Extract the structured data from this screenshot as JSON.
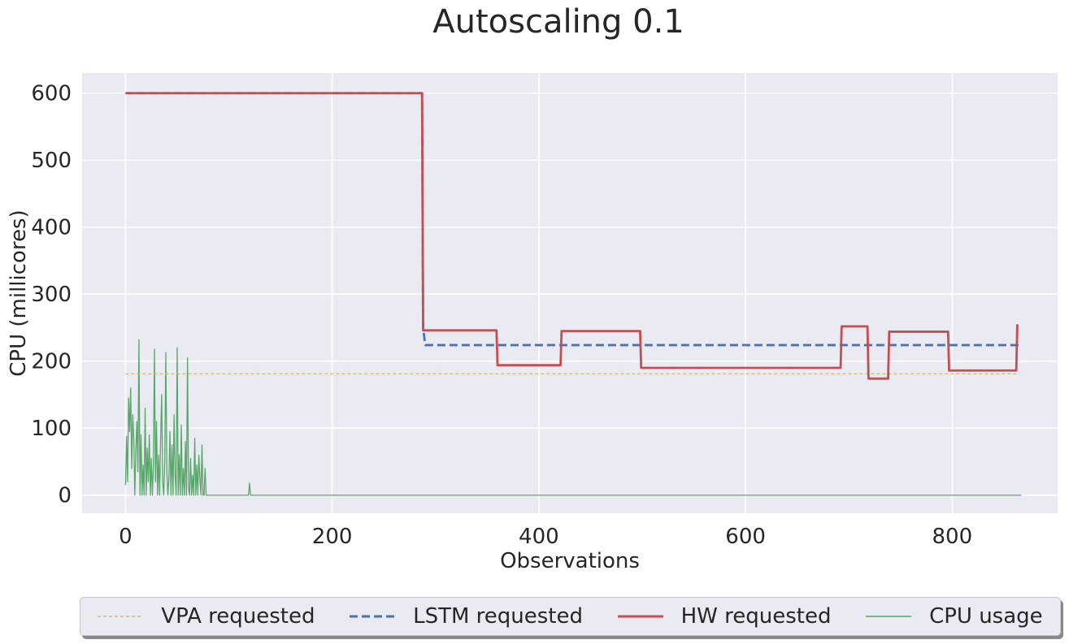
{
  "chart_data": {
    "type": "line",
    "title": "Autoscaling 0.1",
    "xlabel": "Observations",
    "ylabel": "CPU (millicores)",
    "xlim": [
      -42,
      902
    ],
    "ylim": [
      -27,
      630
    ],
    "xticks": [
      0,
      200,
      400,
      600,
      800
    ],
    "yticks": [
      0,
      100,
      200,
      300,
      400,
      500,
      600
    ],
    "grid": true,
    "legend_position": "bottom-center",
    "series": [
      {
        "name": "VPA requested",
        "color": "#ccb974",
        "style": "dotted",
        "x": [
          0,
          865
        ],
        "y": [
          181,
          181
        ]
      },
      {
        "name": "LSTM requested",
        "color": "#4c72b0",
        "style": "dashed",
        "x": [
          0,
          287,
          288,
          290,
          865
        ],
        "y": [
          600,
          600,
          250,
          224,
          224
        ]
      },
      {
        "name": "HW requested",
        "color": "#c44e52",
        "style": "solid",
        "x": [
          0,
          287,
          288,
          359,
          360,
          421,
          422,
          498,
          499,
          692,
          693,
          718,
          719,
          738,
          739,
          796,
          797,
          862,
          863
        ],
        "y": [
          600,
          600,
          246,
          246,
          194,
          194,
          245,
          245,
          190,
          190,
          252,
          252,
          174,
          174,
          244,
          244,
          186,
          186,
          255
        ]
      },
      {
        "name": "CPU usage",
        "color": "#55a868",
        "style": "solid",
        "x_start": 0,
        "x_step": 1,
        "y": [
          15,
          88,
          20,
          145,
          95,
          160,
          40,
          120,
          85,
          0,
          65,
          110,
          35,
          232,
          0,
          90,
          0,
          45,
          0,
          130,
          0,
          70,
          20,
          90,
          0,
          55,
          0,
          45,
          218,
          20,
          110,
          0,
          60,
          0,
          85,
          150,
          20,
          0,
          50,
          213,
          35,
          0,
          25,
          95,
          0,
          75,
          0,
          120,
          30,
          0,
          220,
          0,
          60,
          0,
          105,
          0,
          40,
          0,
          80,
          0,
          205,
          10,
          0,
          55,
          0,
          30,
          0,
          85,
          0,
          45,
          0,
          60,
          25,
          0,
          75,
          0,
          0,
          40,
          0,
          0,
          0,
          0,
          0,
          0,
          0,
          0,
          0,
          0,
          0,
          0,
          0,
          0,
          0,
          0,
          0,
          0,
          0,
          0,
          0,
          0,
          0,
          0,
          0,
          0,
          0,
          0,
          0,
          0,
          0,
          0,
          0,
          0,
          0,
          0,
          0,
          0,
          0,
          0,
          0,
          0,
          18,
          0,
          0,
          0,
          0,
          0,
          0,
          0,
          0,
          0,
          0,
          0,
          0,
          0,
          0,
          0,
          0,
          0,
          0,
          0,
          0,
          0,
          0,
          0,
          0,
          0,
          0,
          0,
          0,
          0,
          0,
          0,
          0,
          0,
          0,
          0,
          0,
          0,
          0,
          0,
          0,
          0,
          0,
          0,
          0,
          0,
          0,
          0,
          0,
          0,
          0,
          0,
          0,
          0,
          0,
          0,
          0,
          0,
          0,
          0,
          0,
          0,
          0,
          0,
          0,
          0,
          0,
          0,
          0,
          0,
          0,
          0,
          0,
          0,
          0,
          0,
          0,
          0,
          0,
          0,
          0,
          0,
          0,
          0,
          0,
          0,
          0,
          0,
          0,
          0,
          0,
          0,
          0,
          0,
          0,
          0,
          0,
          0,
          0,
          0,
          0,
          0,
          0,
          0,
          0,
          0,
          0,
          0,
          0,
          0,
          0,
          0,
          0,
          0,
          0,
          0,
          0,
          0,
          0,
          0,
          0,
          0,
          0,
          0,
          0,
          0,
          0,
          0,
          0,
          0,
          0,
          0,
          0,
          0,
          0,
          0,
          0,
          0,
          0,
          0,
          0,
          0,
          0,
          0,
          0,
          0,
          0,
          0,
          0,
          0,
          0,
          0,
          0,
          0,
          0,
          0,
          0,
          0,
          0,
          0,
          0,
          0,
          0,
          0,
          0,
          0,
          0,
          0,
          0,
          0,
          0,
          0,
          0,
          0,
          0,
          0,
          0,
          0,
          0,
          0,
          0,
          0,
          0,
          0,
          0,
          0,
          0,
          0,
          0,
          0,
          0,
          0,
          0,
          0,
          0,
          0,
          0,
          0,
          0,
          0,
          0,
          0,
          0,
          0,
          0,
          0,
          0,
          0,
          0,
          0,
          0,
          0,
          0,
          0,
          0,
          0,
          0,
          0,
          0,
          0,
          0,
          0,
          0,
          0,
          0,
          0,
          0,
          0,
          0,
          0,
          0,
          0,
          0,
          0,
          0,
          0,
          0,
          0,
          0,
          0,
          0,
          0,
          0,
          0,
          0,
          0,
          0,
          0,
          0,
          0,
          0,
          0,
          0,
          0,
          0,
          0,
          0,
          0,
          0,
          0,
          0,
          0,
          0,
          0,
          0,
          0,
          0,
          0,
          0,
          0,
          0,
          0,
          0,
          0,
          0,
          0,
          0,
          0,
          0,
          0,
          0,
          0,
          0,
          0,
          0,
          0,
          0,
          0,
          0,
          0,
          0,
          0,
          0,
          0,
          0,
          0,
          0,
          0,
          0,
          0,
          0,
          0,
          0,
          0,
          0,
          0,
          0,
          0,
          0,
          0,
          0,
          0,
          0,
          0,
          0,
          0,
          0,
          0,
          0,
          0,
          0,
          0,
          0,
          0,
          0,
          0,
          0,
          0,
          0,
          0,
          0,
          0,
          0,
          0,
          0,
          0,
          0,
          0,
          0,
          0,
          0,
          0,
          0,
          0,
          0,
          0,
          0,
          0,
          0,
          0,
          0,
          0,
          0,
          0,
          0,
          0,
          0,
          0,
          0,
          0,
          0,
          0,
          0,
          0,
          0,
          0,
          0,
          0,
          0,
          0,
          0,
          0,
          0,
          0,
          0,
          0,
          0,
          0,
          0,
          0,
          0,
          0,
          0,
          0,
          0,
          0,
          0,
          0,
          0,
          0,
          0,
          0,
          0,
          0,
          0,
          0,
          0,
          0,
          0,
          0,
          0,
          0,
          0,
          0,
          0,
          0,
          0,
          0,
          0,
          0,
          0,
          0,
          0,
          0,
          0,
          0,
          0,
          0,
          0,
          0,
          0,
          0,
          0,
          0,
          0,
          0,
          0,
          0,
          0,
          0,
          0,
          0,
          0,
          0,
          0,
          0,
          0,
          0,
          0,
          0,
          0,
          0,
          0,
          0,
          0,
          0,
          0,
          0,
          0,
          0,
          0,
          0,
          0,
          0,
          0,
          0,
          0,
          0,
          0,
          0,
          0,
          0,
          0,
          0,
          0,
          0,
          0,
          0,
          0,
          0,
          0,
          0,
          0,
          0,
          0,
          0,
          0,
          0,
          0,
          0,
          0,
          0,
          0,
          0,
          0,
          0,
          0,
          0,
          0,
          0,
          0,
          0,
          0,
          0,
          0,
          0,
          0,
          0,
          0,
          0,
          0,
          0,
          0,
          0,
          0,
          0,
          0,
          0,
          0,
          0,
          0,
          0,
          0,
          0,
          0,
          0,
          0,
          0,
          0,
          0,
          0,
          0,
          0,
          0,
          0,
          0,
          0,
          0,
          0,
          0,
          0,
          0,
          0,
          0,
          0,
          0,
          0,
          0,
          0,
          0,
          0,
          0,
          0,
          0,
          0,
          0,
          0,
          0,
          0,
          0,
          0,
          0,
          0,
          0,
          0,
          0,
          0,
          0,
          0,
          0,
          0,
          0,
          0,
          0,
          0,
          0,
          0,
          0,
          0,
          0,
          0,
          0,
          0,
          0,
          0,
          0,
          0,
          0,
          0,
          0,
          0,
          0,
          0,
          0,
          0,
          0,
          0,
          0,
          0,
          0,
          0,
          0,
          0,
          0,
          0,
          0,
          0,
          0,
          0,
          0,
          0,
          0,
          0,
          0,
          0,
          0,
          0,
          0,
          0,
          0,
          0,
          0,
          0,
          0,
          0,
          0,
          0,
          0,
          0,
          0,
          0,
          0,
          0,
          0,
          0,
          0,
          0,
          0,
          0,
          0,
          0,
          0,
          0,
          0,
          0,
          0,
          0,
          0,
          0,
          0,
          0,
          0,
          0,
          0,
          0,
          0,
          0,
          0,
          0,
          0,
          0,
          0,
          0,
          0,
          0,
          0,
          0,
          0,
          0,
          0,
          0,
          0,
          0,
          0,
          0,
          0,
          0,
          0,
          0,
          0,
          0,
          0,
          0,
          0,
          0,
          0,
          0,
          0,
          0,
          0,
          0,
          0,
          0,
          0,
          0,
          0,
          0,
          0,
          0,
          0,
          0,
          0,
          0,
          0,
          0,
          0,
          0,
          0,
          0,
          0,
          0,
          0,
          0,
          0,
          0,
          0,
          0,
          0,
          0,
          0,
          0,
          0,
          0,
          0,
          0,
          0,
          0,
          0,
          0,
          0,
          0,
          0,
          0,
          0,
          0,
          0,
          0,
          0,
          0,
          0,
          0,
          0,
          0,
          0,
          0,
          0,
          0,
          0,
          0,
          0,
          0,
          0,
          0,
          0,
          0,
          0,
          0,
          0
        ]
      }
    ]
  }
}
